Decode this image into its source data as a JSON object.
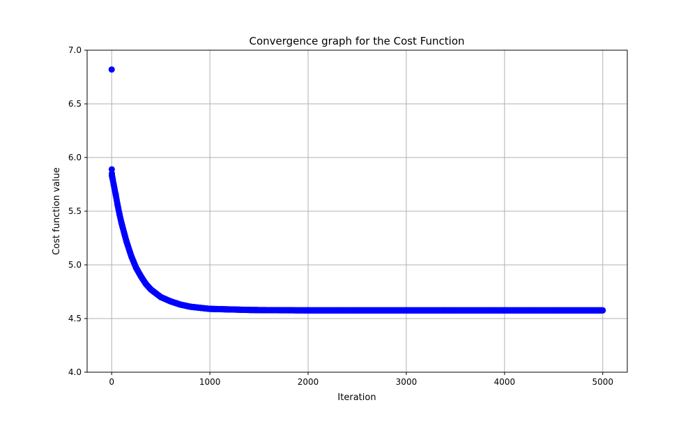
{
  "chart_data": {
    "type": "scatter",
    "title": "Convergence graph for the Cost Function",
    "xlabel": "Iteration",
    "ylabel": "Cost function value",
    "xlim": [
      -250,
      5250
    ],
    "ylim": [
      4.0,
      7.0
    ],
    "x_ticks": [
      0,
      1000,
      2000,
      3000,
      4000,
      5000
    ],
    "x_tick_labels": [
      "0",
      "1000",
      "2000",
      "3000",
      "4000",
      "5000"
    ],
    "y_ticks": [
      4.0,
      4.5,
      5.0,
      5.5,
      6.0,
      6.5,
      7.0
    ],
    "y_tick_labels": [
      "4.0",
      "4.5",
      "5.0",
      "5.5",
      "6.0",
      "6.5",
      "7.0"
    ],
    "grid": true,
    "marker_color": "#0000ff",
    "series": [
      {
        "points_x": [
          0,
          1,
          2,
          3,
          5,
          10,
          20,
          40,
          60,
          80,
          100,
          150,
          200,
          250,
          300,
          350,
          400,
          500,
          600,
          700,
          800,
          900,
          1000,
          1200,
          1400,
          1600,
          1800,
          2000,
          2500,
          3000,
          3500,
          4000,
          4500,
          5000
        ],
        "points_y": [
          6.82,
          5.89,
          5.85,
          5.83,
          5.82,
          5.8,
          5.75,
          5.66,
          5.56,
          5.47,
          5.39,
          5.22,
          5.08,
          4.97,
          4.89,
          4.82,
          4.77,
          4.7,
          4.66,
          4.63,
          4.61,
          4.6,
          4.59,
          4.585,
          4.58,
          4.578,
          4.577,
          4.576,
          4.576,
          4.576,
          4.576,
          4.576,
          4.576,
          4.576
        ]
      }
    ]
  }
}
